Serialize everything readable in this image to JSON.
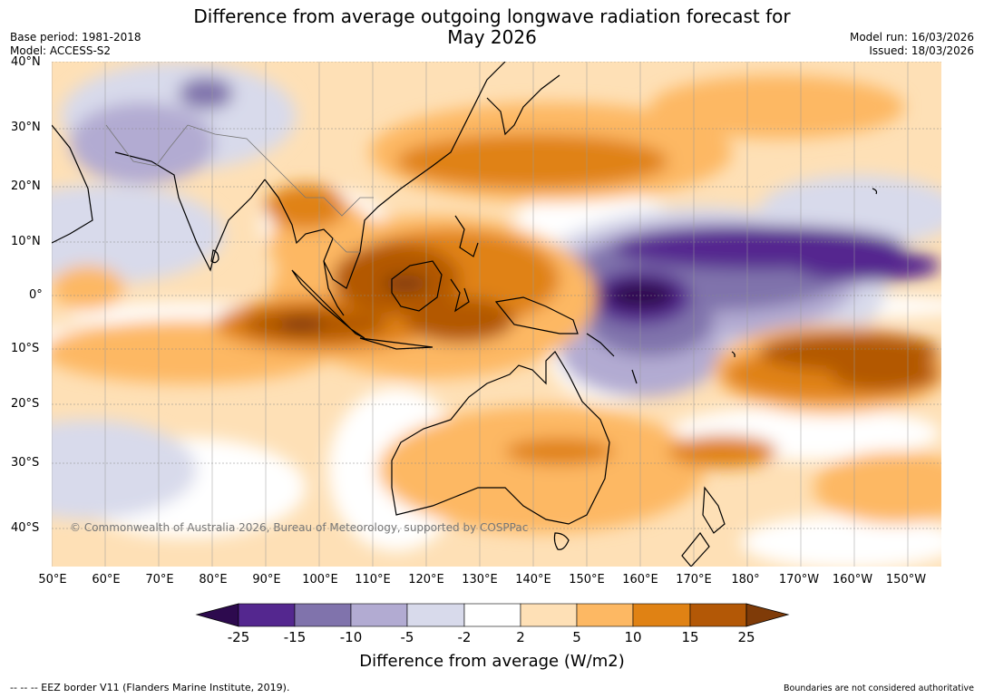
{
  "header": {
    "title_line1": "Difference from average outgoing longwave radiation forecast for",
    "title_line2": "May 2026",
    "base_period": "Base period: 1981-2018",
    "model": "Model: ACCESS-S2",
    "model_run": "Model run: 16/03/2026",
    "issued": "Issued: 18/03/2026"
  },
  "map": {
    "copyright": "© Commonwealth of Australia 2026, Bureau of Meteorology, supported by COSPPac",
    "lat_labels": [
      "40°N",
      "30°N",
      "20°N",
      "10°N",
      "0°",
      "10°S",
      "20°S",
      "30°S",
      "40°S"
    ],
    "lon_labels": [
      "50°E",
      "60°E",
      "70°E",
      "80°E",
      "90°E",
      "100°E",
      "110°E",
      "120°E",
      "130°E",
      "140°E",
      "150°E",
      "160°E",
      "170°E",
      "180°",
      "170°W",
      "160°W",
      "150°W"
    ],
    "colors": {
      "neg25": "#2d0a4e",
      "neg15": "#54278f",
      "neg10": "#8073ac",
      "neg5": "#b2abd2",
      "neg2": "#d8daeb",
      "zero": "#ffffff",
      "pos2": "#fee0b6",
      "pos5": "#fdb863",
      "pos10": "#e08214",
      "pos15": "#b35806",
      "pos25": "#7f3b08",
      "land_outline": "#000000"
    }
  },
  "colorbar": {
    "ticks": [
      "-25",
      "-15",
      "-10",
      "-5",
      "-2",
      "2",
      "5",
      "10",
      "15",
      "25"
    ],
    "title": "Difference from average (W/m2)"
  },
  "footer": {
    "left": "--  --  -- EEZ border V11 (Flanders Marine Institute, 2019).",
    "right": "Boundaries are not considered authoritative"
  }
}
